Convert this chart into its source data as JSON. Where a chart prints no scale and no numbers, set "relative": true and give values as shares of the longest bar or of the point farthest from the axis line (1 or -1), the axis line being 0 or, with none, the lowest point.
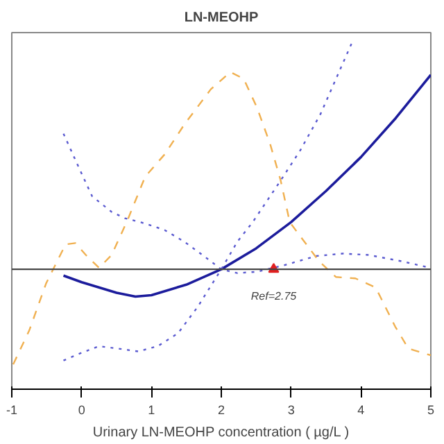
{
  "chart_data": {
    "type": "line",
    "title": "LN-MEOHP",
    "xlabel": "Urinary LN-MEOHP concentration ( µg/L )",
    "relative": true,
    "xlim": [
      -1,
      5
    ],
    "xticks": [
      -1,
      0,
      1,
      2,
      3,
      4,
      5
    ],
    "grid": false,
    "series": [
      {
        "color": "#1c1c9c",
        "line_style": "solid",
        "x": [
          -0.26,
          0,
          0.5,
          0.77,
          1,
          1.5,
          2,
          2.5,
          3,
          3.5,
          4,
          4.5,
          5
        ],
        "values": [
          0.325,
          0.306,
          0.276,
          0.265,
          0.269,
          0.299,
          0.343,
          0.403,
          0.478,
          0.567,
          0.664,
          0.776,
          0.899
        ]
      },
      {
        "color": "#5a5ad0",
        "line_style": "dotted",
        "x": [
          -0.26,
          -0.04,
          0.15,
          0.43,
          0.62,
          0.91,
          1.19,
          1.47,
          1.75,
          2.0,
          2.23,
          2.51,
          2.89,
          3.36,
          3.74,
          4.11,
          4.58,
          5.0
        ],
        "values": [
          0.731,
          0.634,
          0.552,
          0.507,
          0.489,
          0.474,
          0.455,
          0.422,
          0.381,
          0.343,
          0.332,
          0.336,
          0.354,
          0.381,
          0.388,
          0.384,
          0.366,
          0.347
        ]
      },
      {
        "color": "#5a5ad0",
        "line_style": "dotted",
        "x": [
          -0.26,
          -0.04,
          0.25,
          0.53,
          0.81,
          1.09,
          1.38,
          1.66,
          2.0,
          2.23,
          2.45,
          2.85,
          3.13,
          3.42,
          3.89
        ],
        "values": [
          0.082,
          0.101,
          0.123,
          0.116,
          0.108,
          0.123,
          0.16,
          0.235,
          0.343,
          0.422,
          0.478,
          0.597,
          0.683,
          0.787,
          1.0
        ]
      },
      {
        "color": "#f0b050",
        "line_style": "dashed",
        "x": [
          -0.98,
          -0.75,
          -0.51,
          -0.23,
          -0.09,
          0.06,
          0.25,
          0.43,
          0.66,
          0.91,
          1.19,
          1.47,
          1.85,
          2.13,
          2.32,
          2.51,
          2.7,
          2.85,
          2.98,
          3.08,
          3.4,
          3.64,
          3.92,
          4.21,
          4.49,
          4.68,
          5.0
        ],
        "values": [
          0.071,
          0.168,
          0.302,
          0.414,
          0.418,
          0.384,
          0.347,
          0.384,
          0.485,
          0.608,
          0.672,
          0.757,
          0.858,
          0.907,
          0.888,
          0.806,
          0.701,
          0.597,
          0.478,
          0.451,
          0.366,
          0.321,
          0.317,
          0.291,
          0.179,
          0.116,
          0.097
        ]
      },
      {
        "type": "scatter",
        "marker": "triangle",
        "color": "#e02020",
        "x": [
          2.75
        ],
        "values": [
          0.343
        ]
      }
    ],
    "ref_lines": [
      {
        "axis": "y",
        "value": 0.343,
        "color": "#444444"
      }
    ],
    "annotations": [
      {
        "text": "Ref=2.75",
        "x": 2.75,
        "y": 0.343
      }
    ]
  }
}
